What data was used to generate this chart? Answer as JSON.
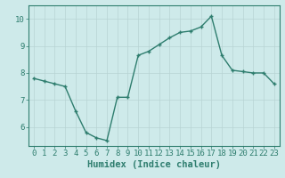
{
  "xlabel": "Humidex (Indice chaleur)",
  "x": [
    0,
    1,
    2,
    3,
    4,
    5,
    6,
    7,
    8,
    9,
    10,
    11,
    12,
    13,
    14,
    15,
    16,
    17,
    18,
    19,
    20,
    21,
    22,
    23
  ],
  "y": [
    7.8,
    7.7,
    7.6,
    7.5,
    6.6,
    5.8,
    5.6,
    5.5,
    7.1,
    7.1,
    8.65,
    8.8,
    9.05,
    9.3,
    9.5,
    9.55,
    9.7,
    10.1,
    8.65,
    8.1,
    8.05,
    8.0,
    8.0,
    7.6
  ],
  "line_color": "#2e7d6e",
  "marker": "+",
  "marker_color": "#2e7d6e",
  "bg_color": "#ceeaea",
  "grid_color": "#b8d4d4",
  "axis_color": "#2e7d6e",
  "tick_color": "#2e7d6e",
  "label_color": "#2e7d6e",
  "ylim": [
    5.3,
    10.5
  ],
  "xlim": [
    -0.5,
    23.5
  ],
  "yticks": [
    6,
    7,
    8,
    9,
    10
  ],
  "xticks": [
    0,
    1,
    2,
    3,
    4,
    5,
    6,
    7,
    8,
    9,
    10,
    11,
    12,
    13,
    14,
    15,
    16,
    17,
    18,
    19,
    20,
    21,
    22,
    23
  ],
  "linewidth": 1.0,
  "markersize": 3.5,
  "xlabel_fontsize": 7.5,
  "tick_fontsize": 6.5
}
